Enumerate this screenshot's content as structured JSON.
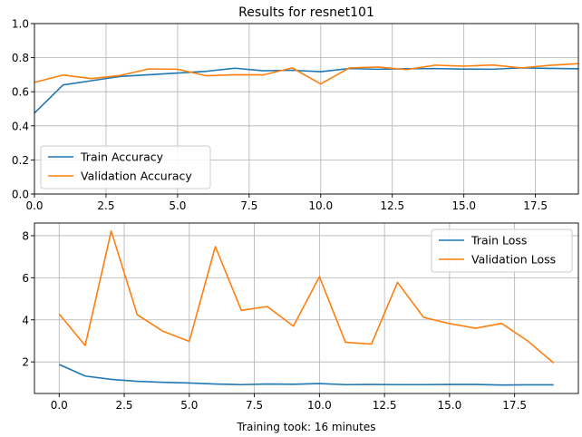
{
  "chart_data": [
    {
      "type": "line",
      "title": "Results for resnet101",
      "xlabel": "",
      "ylabel": "",
      "xlim": [
        0,
        19
      ],
      "ylim": [
        0,
        1.0
      ],
      "xticks": [
        "0.0",
        "2.5",
        "5.0",
        "7.5",
        "10.0",
        "12.5",
        "15.0",
        "17.5"
      ],
      "yticks": [
        "0.0",
        "0.2",
        "0.4",
        "0.6",
        "0.8",
        "1.0"
      ],
      "grid": true,
      "legend_position": "lower-left",
      "x": [
        0,
        1,
        2,
        3,
        4,
        5,
        6,
        7,
        8,
        9,
        10,
        11,
        12,
        13,
        14,
        15,
        16,
        17,
        18,
        19
      ],
      "series": [
        {
          "name": "Train Accuracy",
          "color": "#1f77b4",
          "values": [
            0.475,
            0.64,
            0.665,
            0.69,
            0.7,
            0.71,
            0.72,
            0.738,
            0.723,
            0.726,
            0.718,
            0.736,
            0.732,
            0.735,
            0.736,
            0.733,
            0.732,
            0.74,
            0.737,
            0.735
          ]
        },
        {
          "name": "Validation Accuracy",
          "color": "#ff7f0e",
          "values": [
            0.655,
            0.698,
            0.677,
            0.696,
            0.734,
            0.732,
            0.694,
            0.7,
            0.699,
            0.74,
            0.646,
            0.74,
            0.745,
            0.73,
            0.756,
            0.75,
            0.757,
            0.74,
            0.755,
            0.765
          ]
        }
      ]
    },
    {
      "type": "line",
      "title": "",
      "xlabel": "Training took: 16 minutes",
      "ylabel": "",
      "xlim": [
        -0.95,
        19.95
      ],
      "ylim": [
        0.5,
        8.6
      ],
      "xticks": [
        "0.0",
        "2.5",
        "5.0",
        "7.5",
        "10.0",
        "12.5",
        "15.0",
        "17.5"
      ],
      "yticks": [
        "2",
        "4",
        "6",
        "8"
      ],
      "grid": true,
      "legend_position": "top-right",
      "x": [
        0,
        1,
        2,
        3,
        4,
        5,
        6,
        7,
        8,
        9,
        10,
        11,
        12,
        13,
        14,
        15,
        16,
        17,
        18,
        19
      ],
      "series": [
        {
          "name": "Train Loss",
          "color": "#1f77b4",
          "values": [
            1.88,
            1.33,
            1.17,
            1.08,
            1.03,
            1.0,
            0.95,
            0.92,
            0.95,
            0.94,
            0.97,
            0.92,
            0.93,
            0.92,
            0.92,
            0.93,
            0.93,
            0.9,
            0.91,
            0.91
          ]
        },
        {
          "name": "Validation Loss",
          "color": "#ff7f0e",
          "values": [
            4.28,
            2.78,
            8.22,
            4.24,
            3.45,
            2.98,
            7.48,
            4.45,
            4.63,
            3.7,
            6.05,
            2.93,
            2.85,
            5.78,
            4.12,
            3.82,
            3.6,
            3.83,
            3.0,
            1.95
          ]
        }
      ]
    }
  ]
}
